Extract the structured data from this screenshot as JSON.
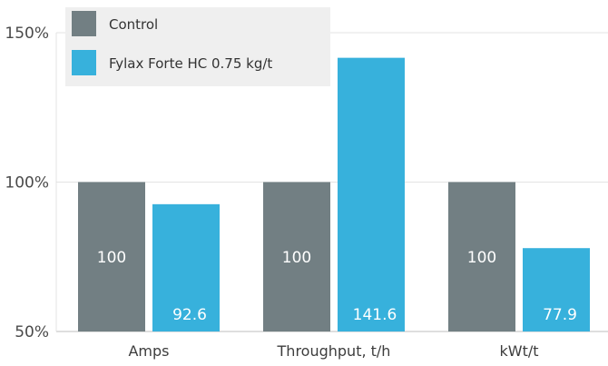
{
  "chart_data": {
    "type": "bar",
    "categories": [
      "Amps",
      "Throughput, t/h",
      "kWt/t"
    ],
    "series": [
      {
        "name": "Control",
        "values": [
          100,
          100,
          100
        ],
        "color": "#727f83"
      },
      {
        "name": "Fylax Forte HC 0.75 kg/t",
        "values": [
          92.6,
          141.6,
          77.9
        ],
        "color": "#37b1dc"
      }
    ],
    "ylim": [
      50,
      150
    ],
    "yticks": [
      50,
      100,
      150
    ],
    "ytick_labels": [
      "50%",
      "100%",
      "150%"
    ],
    "grid": "horizontal",
    "legend_position": "top-left",
    "title": "",
    "xlabel": "",
    "ylabel": ""
  }
}
